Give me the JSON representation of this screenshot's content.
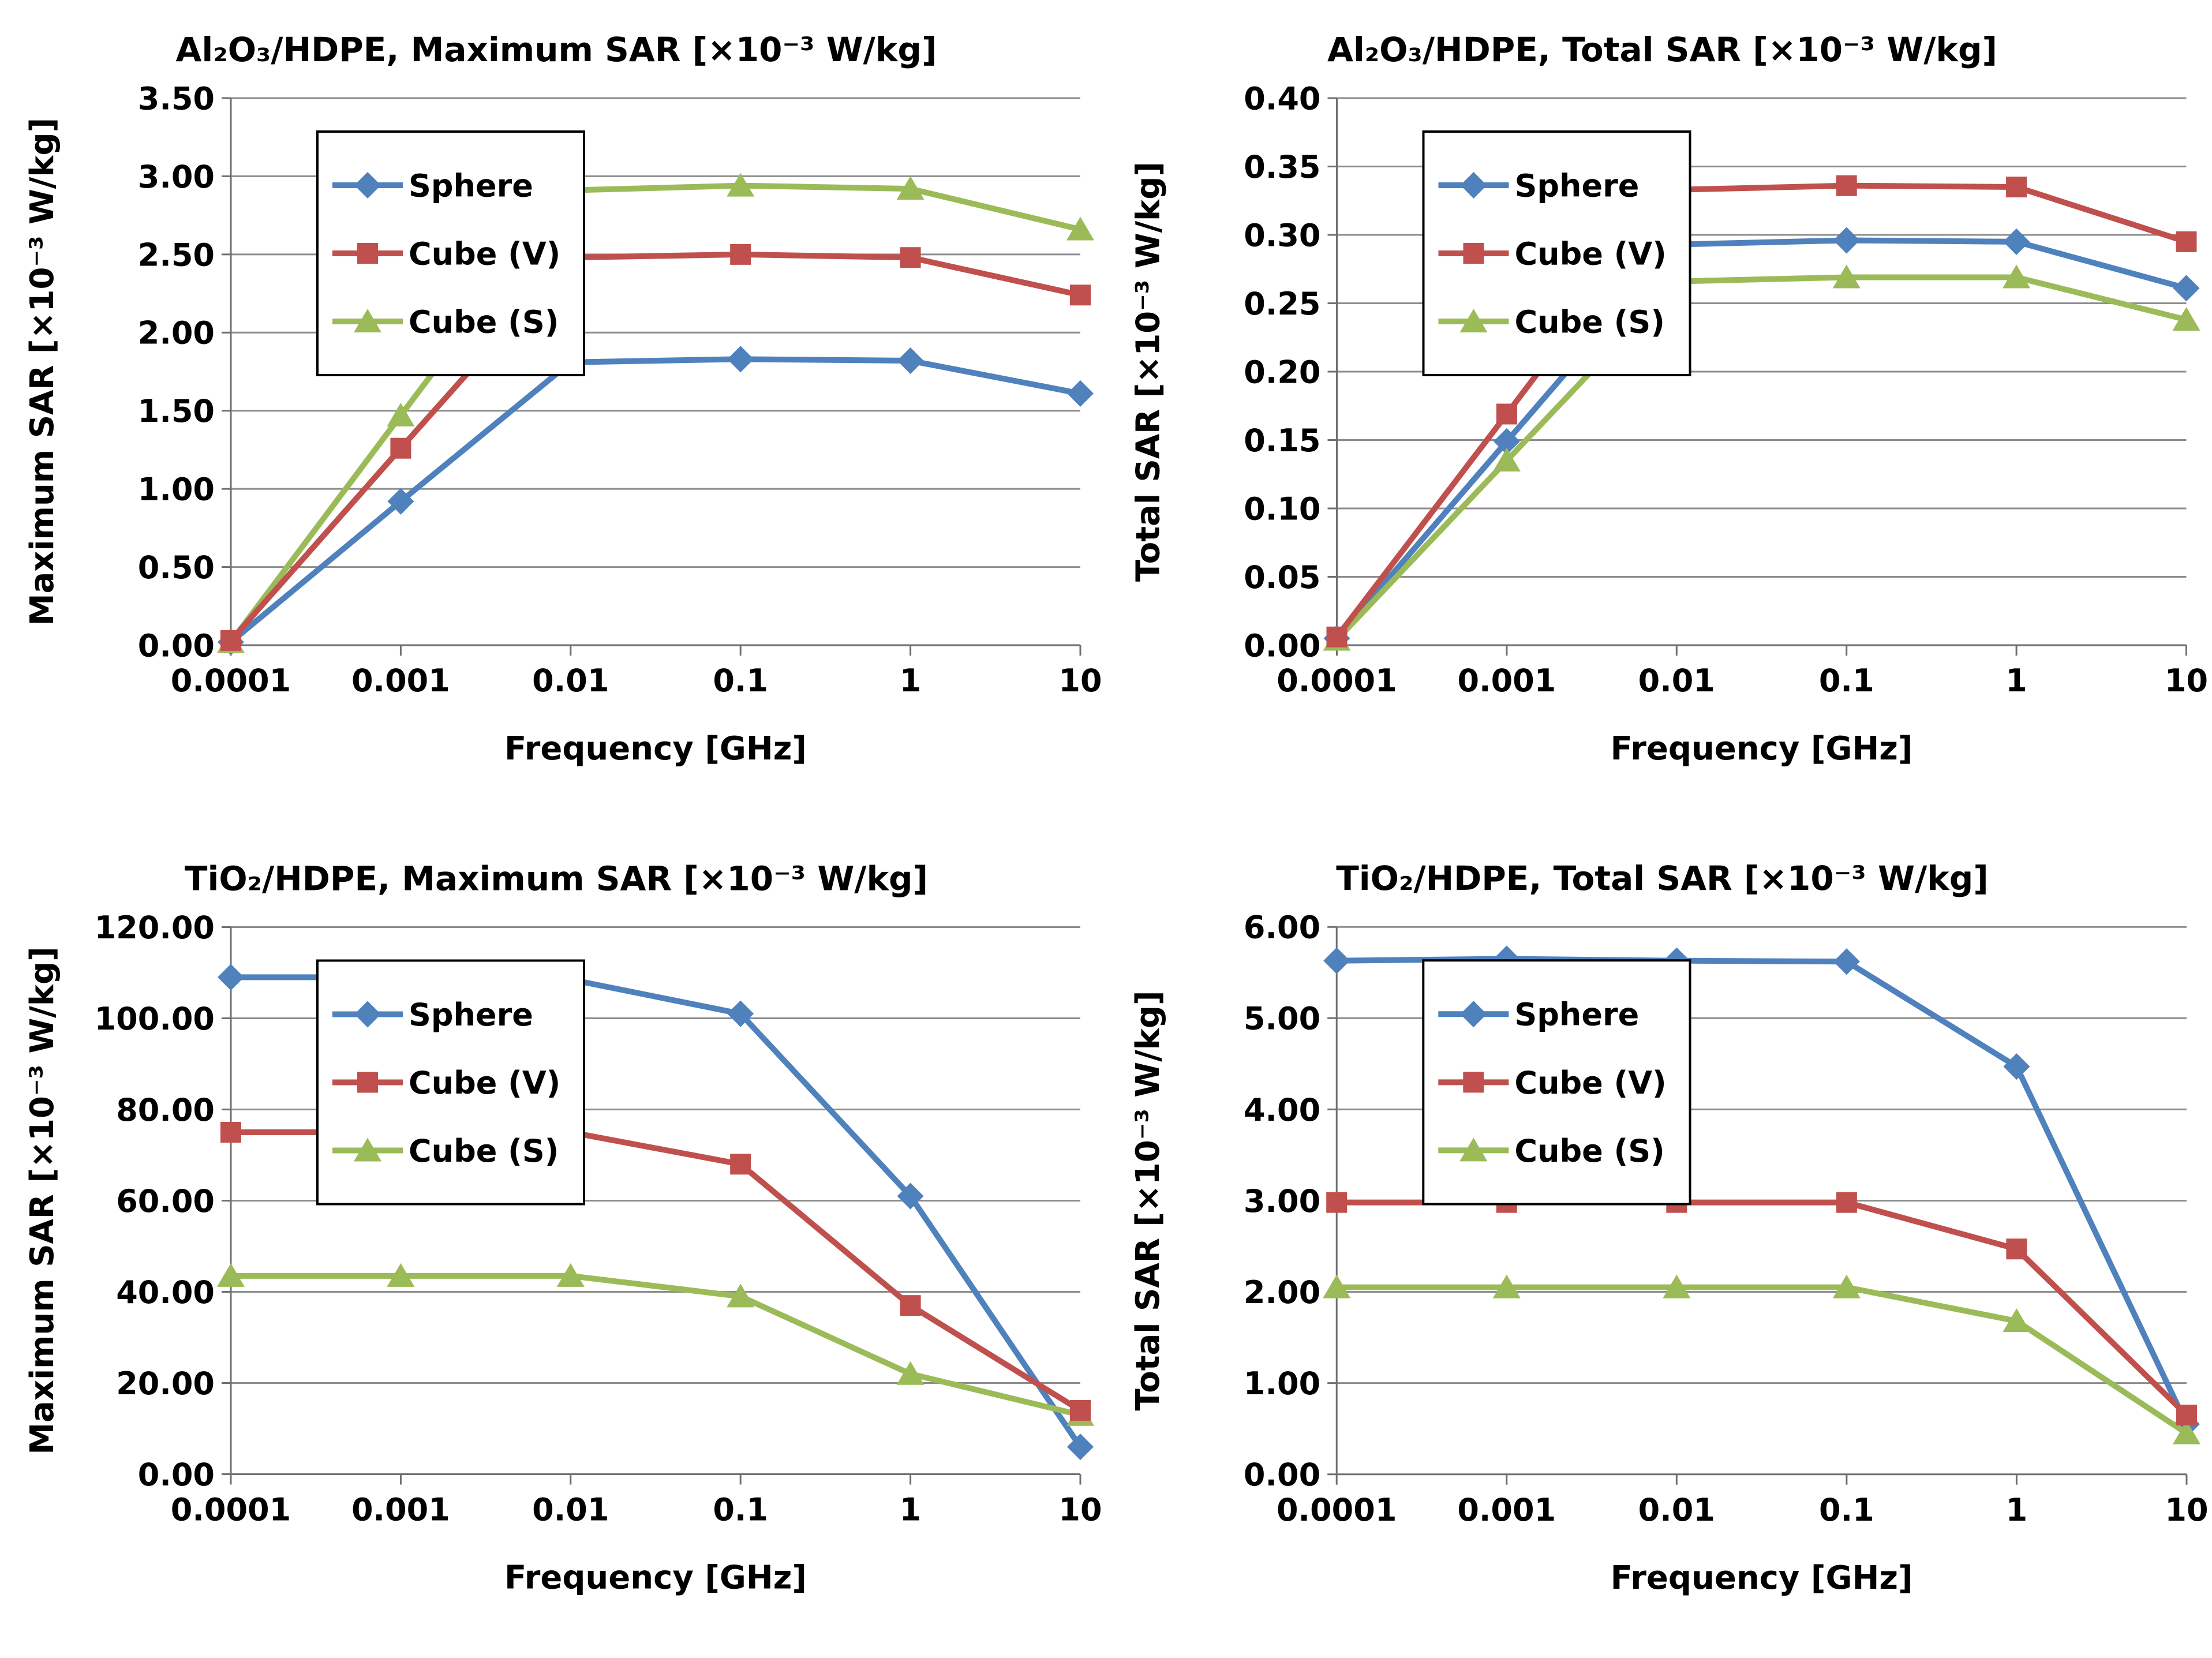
{
  "colors": {
    "background": "#FFFFFF",
    "series_blue": "#4F81BD",
    "series_red": "#C0504D",
    "series_green": "#9BBB59",
    "gridline": "#8C8C8C",
    "axis": "#6F6F6F",
    "text": "#000000",
    "legend_border": "#000000",
    "legend_background": "#FFFFFF"
  },
  "chart_data": [
    {
      "type": "line",
      "id": "al2o3-maximum-sar",
      "title": "Al₂O₃/HDPE, Maximum SAR [×10⁻³ W/kg]",
      "x_label": "Frequency [GHz]",
      "x_categories": [
        "0.0001",
        "0.001",
        "0.01",
        "0.1",
        "1",
        "10"
      ],
      "y_label": "Maximum SAR [×10⁻³ W/kg]",
      "y_min": 0,
      "y_max": 3.5,
      "y_ticks": [
        "0.00",
        "0.50",
        "1.00",
        "1.50",
        "2.00",
        "2.50",
        "3.00",
        "3.50"
      ],
      "grid": true,
      "legend_position": "top-left",
      "series": [
        {
          "name": "Sphere",
          "marker": "diamond",
          "color": "#4F81BD",
          "values": [
            0.02,
            0.92,
            1.81,
            1.83,
            1.82,
            1.61
          ]
        },
        {
          "name": "Cube (V)",
          "marker": "square",
          "color": "#C0504D",
          "values": [
            0.03,
            1.26,
            2.48,
            2.5,
            2.48,
            2.24
          ]
        },
        {
          "name": "Cube (S)",
          "marker": "triangle",
          "color": "#9BBB59",
          "values": [
            0.02,
            1.47,
            2.91,
            2.94,
            2.92,
            2.66
          ]
        }
      ]
    },
    {
      "type": "line",
      "id": "al2o3-total-sar",
      "title": "Al₂O₃/HDPE, Total SAR [×10⁻³ W/kg]",
      "x_label": "Frequency [GHz]",
      "x_categories": [
        "0.0001",
        "0.001",
        "0.01",
        "0.1",
        "1",
        "10"
      ],
      "y_label": "Total SAR [×10⁻³ W/kg]",
      "y_min": 0,
      "y_max": 0.4,
      "y_ticks": [
        "0.00",
        "0.05",
        "0.10",
        "0.15",
        "0.20",
        "0.25",
        "0.30",
        "0.35",
        "0.40"
      ],
      "grid": true,
      "legend_position": "top-left",
      "series": [
        {
          "name": "Sphere",
          "marker": "diamond",
          "color": "#4F81BD",
          "values": [
            0.005,
            0.149,
            0.293,
            0.296,
            0.295,
            0.261
          ]
        },
        {
          "name": "Cube (V)",
          "marker": "square",
          "color": "#C0504D",
          "values": [
            0.006,
            0.169,
            0.333,
            0.336,
            0.335,
            0.295
          ]
        },
        {
          "name": "Cube (S)",
          "marker": "triangle",
          "color": "#9BBB59",
          "values": [
            0.004,
            0.135,
            0.266,
            0.269,
            0.269,
            0.238
          ]
        }
      ]
    },
    {
      "type": "line",
      "id": "tio2-maximum-sar",
      "title": "TiO₂/HDPE, Maximum SAR [×10⁻³ W/kg]",
      "x_label": "Frequency [GHz]",
      "x_categories": [
        "0.0001",
        "0.001",
        "0.01",
        "0.1",
        "1",
        "10"
      ],
      "y_label": "Maximum SAR [×10⁻³ W/kg]",
      "y_min": 0,
      "y_max": 120,
      "y_ticks": [
        "0.00",
        "20.00",
        "40.00",
        "60.00",
        "80.00",
        "100.00",
        "120.00"
      ],
      "grid": true,
      "legend_position": "top-left",
      "series": [
        {
          "name": "Sphere",
          "marker": "diamond",
          "color": "#4F81BD",
          "values": [
            109,
            109,
            108.5,
            101,
            61,
            6
          ]
        },
        {
          "name": "Cube (V)",
          "marker": "square",
          "color": "#C0504D",
          "values": [
            75,
            75,
            75,
            68,
            37,
            14
          ]
        },
        {
          "name": "Cube (S)",
          "marker": "triangle",
          "color": "#9BBB59",
          "values": [
            43.5,
            43.5,
            43.5,
            39,
            22,
            13
          ]
        }
      ]
    },
    {
      "type": "line",
      "id": "tio2-total-sar",
      "title": "TiO₂/HDPE, Total SAR [×10⁻³ W/kg]",
      "x_label": "Frequency [GHz]",
      "x_categories": [
        "0.0001",
        "0.001",
        "0.01",
        "0.1",
        "1",
        "10"
      ],
      "y_label": "Total SAR [×10⁻³ W/kg]",
      "y_min": 0,
      "y_max": 6,
      "y_ticks": [
        "0.00",
        "1.00",
        "2.00",
        "3.00",
        "4.00",
        "5.00",
        "6.00"
      ],
      "grid": true,
      "legend_position": "top-left",
      "series": [
        {
          "name": "Sphere",
          "marker": "diamond",
          "color": "#4F81BD",
          "values": [
            5.63,
            5.65,
            5.63,
            5.62,
            4.47,
            0.55
          ]
        },
        {
          "name": "Cube (V)",
          "marker": "square",
          "color": "#C0504D",
          "values": [
            2.98,
            2.98,
            2.98,
            2.98,
            2.47,
            0.65
          ]
        },
        {
          "name": "Cube (S)",
          "marker": "triangle",
          "color": "#9BBB59",
          "values": [
            2.05,
            2.05,
            2.05,
            2.05,
            1.68,
            0.45
          ]
        }
      ]
    }
  ]
}
